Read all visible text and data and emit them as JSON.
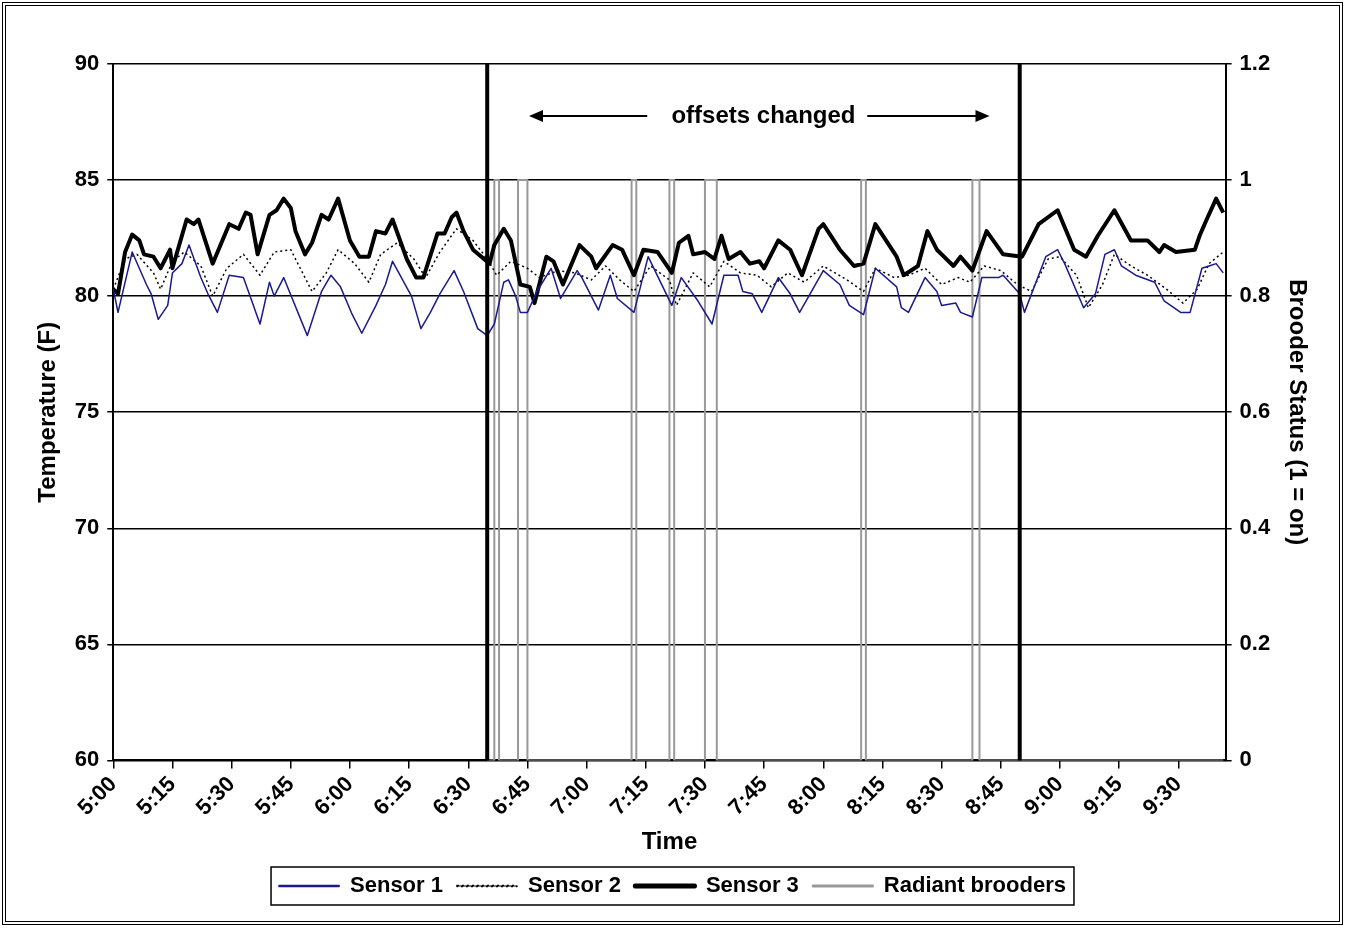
{
  "chart_data": {
    "type": "line",
    "xlabel": "Time",
    "ylabel": "Temperature (F)",
    "y2label": "Brooder Status (1 = on)",
    "annotations": [
      "offsets changed"
    ],
    "xlim": [
      5,
      9.7
    ],
    "xticks": [
      {
        "value": 5,
        "label": "5:00"
      },
      {
        "value": 5.25,
        "label": "5:15"
      },
      {
        "value": 5.5,
        "label": "5:30"
      },
      {
        "value": 5.75,
        "label": "5:45"
      },
      {
        "value": 6,
        "label": "6:00"
      },
      {
        "value": 6.25,
        "label": "6:15"
      },
      {
        "value": 6.5,
        "label": "6:30"
      },
      {
        "value": 6.75,
        "label": "6:45"
      },
      {
        "value": 7,
        "label": "7:00"
      },
      {
        "value": 7.25,
        "label": "7:15"
      },
      {
        "value": 7.5,
        "label": "7:30"
      },
      {
        "value": 7.75,
        "label": "7:45"
      },
      {
        "value": 8,
        "label": "8:00"
      },
      {
        "value": 8.25,
        "label": "8:15"
      },
      {
        "value": 8.5,
        "label": "8:30"
      },
      {
        "value": 8.75,
        "label": "8:45"
      },
      {
        "value": 9,
        "label": "9:00"
      },
      {
        "value": 9.25,
        "label": "9:15"
      },
      {
        "value": 9.5,
        "label": "9:30"
      }
    ],
    "ylim": [
      60,
      90
    ],
    "yticks": [
      60,
      65,
      70,
      75,
      80,
      85,
      90
    ],
    "y2lim": [
      0,
      1.2
    ],
    "y2ticks": [
      0,
      0.2,
      0.4,
      0.6,
      0.8,
      1,
      1.2
    ],
    "grid": "y",
    "legend": "bottom",
    "marker": "none",
    "ref_lines": [
      {
        "axis": "x",
        "value": 6.58,
        "color": "#000000"
      },
      {
        "axis": "x",
        "value": 8.83,
        "color": "#000000"
      }
    ],
    "series": [
      {
        "name": "Sensor 1",
        "color": "#1a1a8c",
        "line_style": "solid",
        "x": [
          5.0,
          5.02,
          5.08,
          5.11,
          5.14,
          5.16,
          5.19,
          5.23,
          5.25,
          5.29,
          5.32,
          5.37,
          5.4,
          5.44,
          5.49,
          5.55,
          5.62,
          5.66,
          5.68,
          5.72,
          5.82,
          5.88,
          5.92,
          5.96,
          6.01,
          6.05,
          6.11,
          6.15,
          6.18,
          6.26,
          6.3,
          6.34,
          6.38,
          6.44,
          6.48,
          6.54,
          6.58,
          6.61,
          6.65,
          6.67,
          6.7,
          6.72,
          6.75,
          6.79,
          6.85,
          6.89,
          6.96,
          6.98,
          7.05,
          7.1,
          7.13,
          7.2,
          7.26,
          7.36,
          7.4,
          7.47,
          7.53,
          7.58,
          7.64,
          7.66,
          7.7,
          7.74,
          7.81,
          7.86,
          7.9,
          8.0,
          8.07,
          8.11,
          8.17,
          8.22,
          8.31,
          8.33,
          8.36,
          8.43,
          8.48,
          8.5,
          8.56,
          8.58,
          8.63,
          8.67,
          8.74,
          8.76,
          8.83,
          8.85,
          8.94,
          8.99,
          9.02,
          9.1,
          9.15,
          9.19,
          9.23,
          9.26,
          9.32,
          9.4,
          9.44,
          9.51,
          9.55,
          9.6,
          9.63,
          9.66,
          9.69
        ],
        "values": [
          80.3,
          79.3,
          81.9,
          81.2,
          80.5,
          80.1,
          79.0,
          79.6,
          81.0,
          81.4,
          82.2,
          80.8,
          80.1,
          79.3,
          80.9,
          80.8,
          78.8,
          80.6,
          80.0,
          80.8,
          78.3,
          80.2,
          80.9,
          80.4,
          79.2,
          78.4,
          79.6,
          80.5,
          81.5,
          80.0,
          78.6,
          79.3,
          80.1,
          81.1,
          80.2,
          78.6,
          78.3,
          78.8,
          80.6,
          80.7,
          80.0,
          79.3,
          79.3,
          80.2,
          81.2,
          79.9,
          81.1,
          80.8,
          79.4,
          80.9,
          79.9,
          79.3,
          81.7,
          79.6,
          80.8,
          79.8,
          78.8,
          80.9,
          80.9,
          80.2,
          80.1,
          79.3,
          80.8,
          80.1,
          79.3,
          81.1,
          80.5,
          79.6,
          79.2,
          81.2,
          80.4,
          79.5,
          79.3,
          80.8,
          80.2,
          79.6,
          79.7,
          79.3,
          79.1,
          80.8,
          80.8,
          80.9,
          80.1,
          79.3,
          81.7,
          82.0,
          81.4,
          79.5,
          80.1,
          81.8,
          82.0,
          81.3,
          80.9,
          80.6,
          79.8,
          79.3,
          79.3,
          81.2,
          81.3,
          81.4,
          81.0
        ]
      },
      {
        "name": "Sensor 2",
        "color": "#000000",
        "line_style": "dotted",
        "x": [
          5.0,
          5.05,
          5.1,
          5.17,
          5.2,
          5.25,
          5.3,
          5.37,
          5.42,
          5.48,
          5.55,
          5.62,
          5.68,
          5.75,
          5.8,
          5.84,
          5.9,
          5.95,
          6.02,
          6.08,
          6.13,
          6.2,
          6.27,
          6.32,
          6.38,
          6.45,
          6.52,
          6.58,
          6.62,
          6.68,
          6.75,
          6.8,
          6.88,
          6.95,
          7.02,
          7.08,
          7.14,
          7.2,
          7.27,
          7.35,
          7.38,
          7.45,
          7.52,
          7.58,
          7.65,
          7.72,
          7.78,
          7.85,
          7.92,
          8.0,
          8.05,
          8.1,
          8.17,
          8.22,
          8.3,
          8.36,
          8.43,
          8.5,
          8.57,
          8.62,
          8.68,
          8.75,
          8.82,
          8.88,
          8.95,
          9.0,
          9.07,
          9.12,
          9.18,
          9.23,
          9.3,
          9.37,
          9.45,
          9.52,
          9.58,
          9.63,
          9.69
        ],
        "values": [
          80.3,
          81.6,
          81.8,
          81.0,
          80.3,
          81.5,
          81.9,
          81.3,
          80.0,
          81.2,
          81.8,
          80.9,
          81.9,
          82.0,
          81.0,
          80.2,
          81.0,
          82.0,
          81.4,
          80.6,
          81.8,
          82.3,
          81.6,
          80.8,
          81.9,
          82.9,
          82.4,
          81.6,
          80.9,
          81.5,
          81.2,
          80.8,
          81.1,
          81.0,
          80.7,
          81.3,
          80.7,
          80.2,
          81.3,
          80.7,
          79.6,
          81.0,
          80.4,
          81.5,
          81.0,
          80.9,
          80.4,
          81.0,
          80.6,
          81.3,
          81.0,
          80.7,
          80.2,
          81.2,
          80.8,
          80.9,
          81.2,
          80.5,
          80.8,
          80.6,
          81.3,
          81.1,
          80.5,
          80.2,
          81.6,
          81.7,
          80.9,
          79.5,
          80.5,
          81.8,
          81.3,
          80.9,
          80.3,
          79.7,
          80.3,
          81.4,
          81.9
        ]
      },
      {
        "name": "Sensor 3",
        "color": "#000000",
        "line_style": "solid",
        "x": [
          5.0,
          5.02,
          5.05,
          5.08,
          5.11,
          5.13,
          5.17,
          5.2,
          5.24,
          5.25,
          5.31,
          5.34,
          5.36,
          5.42,
          5.49,
          5.53,
          5.56,
          5.58,
          5.61,
          5.66,
          5.69,
          5.72,
          5.75,
          5.77,
          5.81,
          5.84,
          5.88,
          5.91,
          5.95,
          6.0,
          6.04,
          6.08,
          6.11,
          6.15,
          6.18,
          6.24,
          6.28,
          6.31,
          6.37,
          6.4,
          6.43,
          6.45,
          6.48,
          6.52,
          6.59,
          6.61,
          6.65,
          6.68,
          6.72,
          6.76,
          6.78,
          6.83,
          6.86,
          6.9,
          6.97,
          7.02,
          7.04,
          7.11,
          7.15,
          7.2,
          7.24,
          7.3,
          7.36,
          7.39,
          7.43,
          7.45,
          7.5,
          7.54,
          7.57,
          7.6,
          7.65,
          7.69,
          7.73,
          7.75,
          7.81,
          7.86,
          7.91,
          7.98,
          8.0,
          8.07,
          8.13,
          8.17,
          8.22,
          8.31,
          8.34,
          8.4,
          8.44,
          8.48,
          8.55,
          8.58,
          8.63,
          8.69,
          8.76,
          8.84,
          8.91,
          8.99,
          9.06,
          9.11,
          9.16,
          9.23,
          9.3,
          9.37,
          9.42,
          9.44,
          9.49,
          9.57,
          9.59,
          9.62,
          9.66,
          9.69
        ],
        "values": [
          80.3,
          80.1,
          81.9,
          82.65,
          82.4,
          81.8,
          81.7,
          81.2,
          82.0,
          81.2,
          83.3,
          83.1,
          83.3,
          81.4,
          83.1,
          82.9,
          83.6,
          83.5,
          81.8,
          83.5,
          83.7,
          84.2,
          83.8,
          82.8,
          81.8,
          82.3,
          83.5,
          83.3,
          84.2,
          82.4,
          81.7,
          81.7,
          82.8,
          82.7,
          83.3,
          81.6,
          80.8,
          80.8,
          82.7,
          82.7,
          83.4,
          83.6,
          82.8,
          82.0,
          81.4,
          82.2,
          82.9,
          82.4,
          80.5,
          80.4,
          79.7,
          81.7,
          81.5,
          80.5,
          82.2,
          81.7,
          81.2,
          82.2,
          82.0,
          80.9,
          82.0,
          81.9,
          81.0,
          82.3,
          82.6,
          81.8,
          81.9,
          81.6,
          82.6,
          81.6,
          81.9,
          81.4,
          81.5,
          81.2,
          82.4,
          82.0,
          80.9,
          82.9,
          83.1,
          82.0,
          81.3,
          81.4,
          83.1,
          81.7,
          80.9,
          81.3,
          82.8,
          82.0,
          81.3,
          81.7,
          81.1,
          82.8,
          81.8,
          81.7,
          83.1,
          83.7,
          82.0,
          81.7,
          82.6,
          83.7,
          82.4,
          82.4,
          81.9,
          82.2,
          81.9,
          82.0,
          82.6,
          83.3,
          84.2,
          83.6
        ]
      },
      {
        "name": "Radiant brooders",
        "color": "#999999",
        "line_style": "solid",
        "axis": "y2",
        "x": [
          6.58,
          6.61,
          6.61,
          6.63,
          6.63,
          6.71,
          6.71,
          6.75,
          6.75,
          7.19,
          7.19,
          7.21,
          7.21,
          7.35,
          7.35,
          7.37,
          7.37,
          7.5,
          7.5,
          7.55,
          7.55,
          8.16,
          8.16,
          8.18,
          8.18,
          8.63,
          8.63,
          8.66,
          8.66,
          9.69
        ],
        "values": [
          0,
          0,
          1,
          1,
          0,
          0,
          1,
          1,
          0,
          0,
          1,
          1,
          0,
          0,
          1,
          1,
          0,
          0,
          1,
          1,
          0,
          0,
          1,
          1,
          0,
          0,
          1,
          1,
          0,
          0
        ]
      }
    ]
  }
}
